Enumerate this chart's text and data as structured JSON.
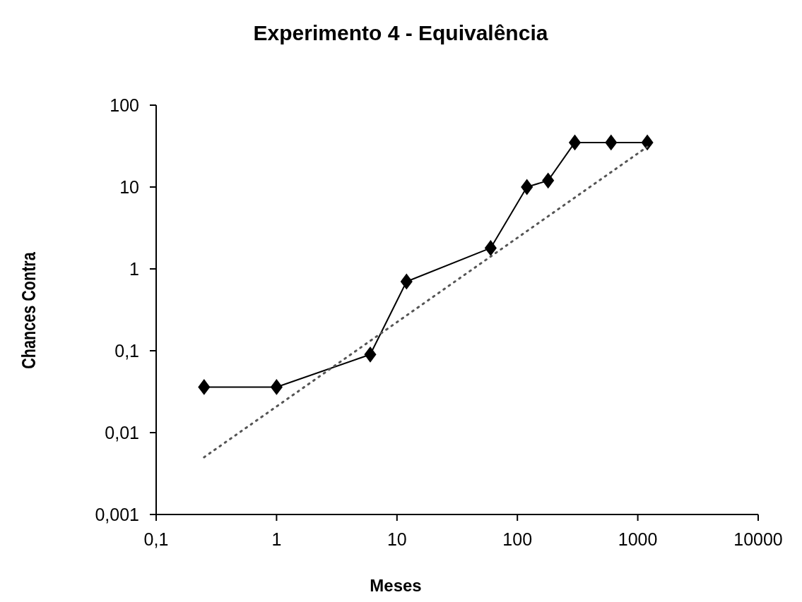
{
  "chart_data": {
    "type": "line",
    "title": "Experimento 4 - Equivalência",
    "xlabel": "Meses",
    "ylabel": "Chances Contra",
    "log": "xy",
    "grid": false,
    "xlim": [
      0.1,
      10000
    ],
    "xticks": [
      {
        "value": 0.1,
        "label": "0,1"
      },
      1,
      10,
      100,
      1000,
      10000
    ],
    "ylim": [
      0.001,
      100
    ],
    "yticks": [
      {
        "value": 0.001,
        "label": "0,001"
      },
      {
        "value": 0.01,
        "label": "0,01"
      },
      {
        "value": 0.1,
        "label": "0,1"
      },
      1,
      10,
      100
    ],
    "series": [
      {
        "color": "#000000",
        "marker": "diamond",
        "line_style": "solid",
        "x": [
          0.25,
          1,
          6,
          12,
          60,
          120,
          180,
          300,
          600,
          1200
        ],
        "values": [
          0.036,
          0.036,
          0.09,
          0.7,
          1.8,
          10,
          12,
          35,
          35,
          35
        ]
      },
      {
        "color": "#555555",
        "marker": "none",
        "line_style": "dotted",
        "x": [
          0.25,
          1200
        ],
        "values": [
          0.005,
          31
        ]
      }
    ]
  }
}
